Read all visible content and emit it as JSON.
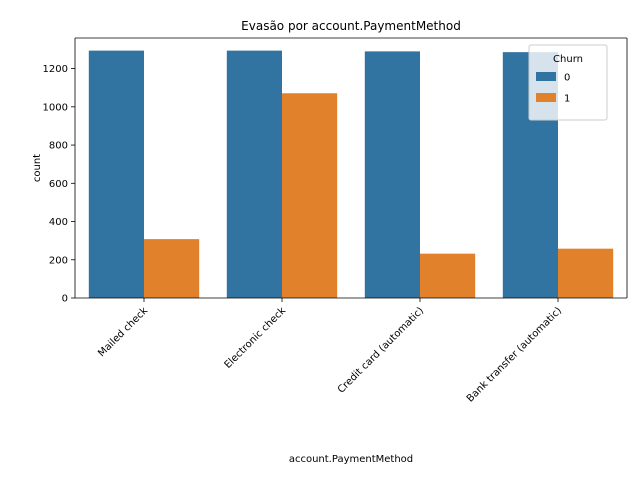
{
  "chart_data": {
    "type": "bar",
    "title": "Evasão por account.PaymentMethod",
    "xlabel": "account.PaymentMethod",
    "ylabel": "count",
    "categories": [
      "Mailed check",
      "Electronic check",
      "Credit card (automatic)",
      "Bank transfer (automatic)"
    ],
    "series": [
      {
        "name": "0",
        "color": "#3274a1",
        "values": [
          1294,
          1294,
          1290,
          1286
        ]
      },
      {
        "name": "1",
        "color": "#e1812c",
        "values": [
          308,
          1071,
          232,
          258
        ]
      }
    ],
    "ylim": [
      0,
      1360
    ],
    "yticks": [
      0,
      200,
      400,
      600,
      800,
      1000,
      1200
    ],
    "legend": {
      "title": "Churn",
      "placement": "top-right"
    },
    "grid": false
  }
}
